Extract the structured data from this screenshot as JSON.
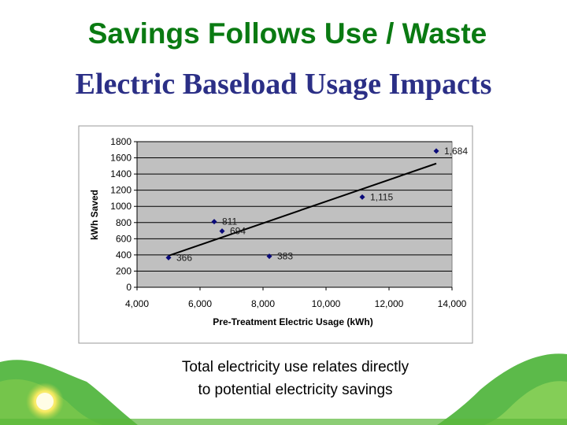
{
  "slide": {
    "title": "Savings Follows Use / Waste",
    "subtitle": "Electric Baseload Usage Impacts",
    "caption_line1": "Total electricity use relates directly",
    "caption_line2": "to potential electricity savings"
  },
  "colors": {
    "title": "#0a7a12",
    "subtitle": "#2b2f86",
    "plot_area": "#c0c0c0",
    "marker": "#0a0a7a",
    "trendline": "#000000",
    "leaf_green": "#3fae2a"
  },
  "chart_data": {
    "type": "scatter",
    "title": "",
    "xlabel": "Pre-Treatment Electric Usage (kWh)",
    "ylabel": "kWh Saved",
    "xlim": [
      4000,
      14000
    ],
    "ylim": [
      0,
      1800
    ],
    "xticks": [
      4000,
      6000,
      8000,
      10000,
      12000,
      14000
    ],
    "xtick_labels": [
      "4,000",
      "6,000",
      "8,000",
      "10,000",
      "12,000",
      "14,000"
    ],
    "yticks": [
      0,
      200,
      400,
      600,
      800,
      1000,
      1200,
      1400,
      1600,
      1800
    ],
    "ytick_labels": [
      "0",
      "200",
      "400",
      "600",
      "800",
      "1000",
      "1200",
      "1400",
      "1600",
      "1800"
    ],
    "grid": "horizontal",
    "legend": "none",
    "points": [
      {
        "x": 5000,
        "y": 366,
        "label": "366"
      },
      {
        "x": 6450,
        "y": 811,
        "label": "811"
      },
      {
        "x": 6700,
        "y": 694,
        "label": "694"
      },
      {
        "x": 8200,
        "y": 383,
        "label": "383"
      },
      {
        "x": 11150,
        "y": 1115,
        "label": "1,115"
      },
      {
        "x": 13500,
        "y": 1684,
        "label": "1,684"
      }
    ],
    "trendline": {
      "x": [
        5000,
        13500
      ],
      "y": [
        390,
        1530
      ]
    }
  }
}
